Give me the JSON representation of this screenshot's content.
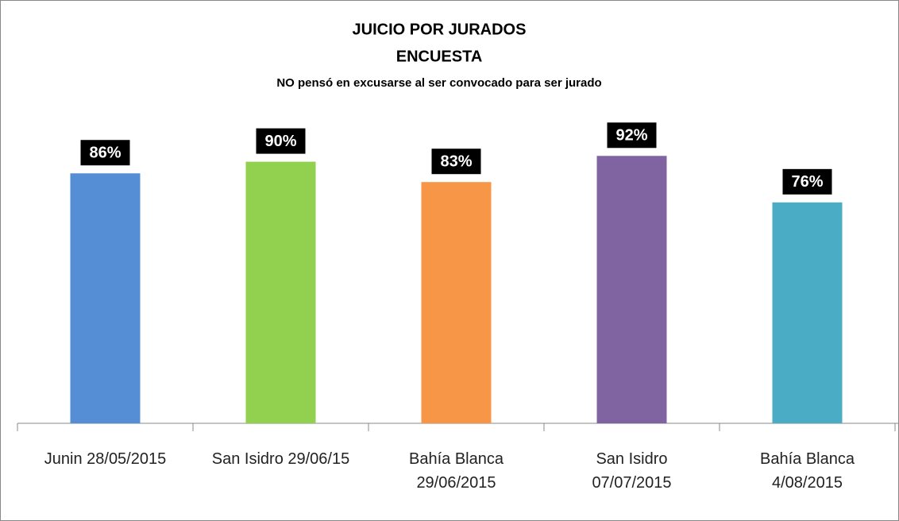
{
  "chart_data": {
    "type": "bar",
    "title": "JUICIO POR JURADOS",
    "subtitle": "ENCUESTA",
    "annotation": "NO pensó en excusarse al ser convocado para ser jurado",
    "categories": [
      "Junin 28/05/2015",
      "San Isidro 29/06/15",
      "Bahía Blanca\n29/06/2015",
      "San Isidro\n07/07/2015",
      "Bahía Blanca\n4/08/2015"
    ],
    "values": [
      86,
      90,
      83,
      92,
      76
    ],
    "value_labels": [
      "86%",
      "90%",
      "83%",
      "92%",
      "76%"
    ],
    "colors": [
      "#558ed5",
      "#92d050",
      "#f79646",
      "#8064a2",
      "#4bacc6"
    ],
    "ylim": [
      0,
      100
    ]
  }
}
